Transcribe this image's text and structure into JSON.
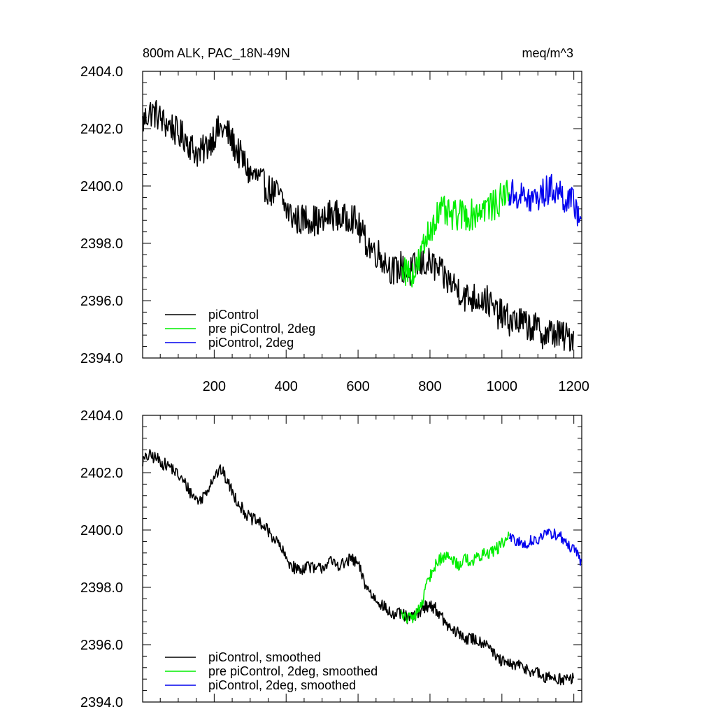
{
  "header": {
    "left_title": "800m ALK, PAC_18N-49N",
    "right_title": "meq/m^3"
  },
  "colors": {
    "piControl": "#000000",
    "pre_piControl_2deg": "#00ee00",
    "piControl_2deg": "#0000ee"
  },
  "chart_data": [
    {
      "type": "line",
      "title": "800m ALK, PAC_18N-49N",
      "units": "meq/m^3",
      "xlabel": "",
      "ylabel": "",
      "xlim": [
        1,
        1222
      ],
      "ylim": [
        2394.0,
        2404.0
      ],
      "xticks": [
        200,
        400,
        600,
        800,
        1000,
        1200
      ],
      "xtick_labels": [
        "200",
        "400",
        "600",
        "800",
        "1000",
        "1200"
      ],
      "yticks": [
        2394.0,
        2396.0,
        2398.0,
        2400.0,
        2402.0,
        2404.0
      ],
      "ytick_labels": [
        "2394.0",
        "2396.0",
        "2398.0",
        "2400.0",
        "2402.0",
        "2404.0"
      ],
      "legend_position": "lower-left",
      "grid": false,
      "noise": 0.55,
      "series": [
        {
          "name": "piControl",
          "color": "#000000",
          "x": [
            1,
            20,
            40,
            60,
            80,
            100,
            120,
            140,
            160,
            180,
            200,
            220,
            240,
            260,
            280,
            300,
            320,
            340,
            360,
            380,
            400,
            420,
            440,
            460,
            480,
            500,
            520,
            540,
            560,
            580,
            600,
            620,
            640,
            660,
            680,
            700,
            720,
            740,
            760,
            780,
            800,
            820,
            840,
            860,
            880,
            900,
            920,
            940,
            960,
            980,
            1000,
            1020,
            1040,
            1060,
            1080,
            1100,
            1120,
            1140,
            1160,
            1180,
            1200
          ],
          "y": [
            2402.2,
            2402.6,
            2402.5,
            2402.2,
            2402.1,
            2401.8,
            2401.7,
            2401.3,
            2401.1,
            2401.4,
            2401.8,
            2402.0,
            2401.8,
            2401.3,
            2400.9,
            2400.4,
            2400.3,
            2400.0,
            2399.8,
            2399.7,
            2399.2,
            2398.9,
            2398.8,
            2398.9,
            2398.8,
            2398.7,
            2399.0,
            2399.0,
            2398.8,
            2399.0,
            2398.6,
            2398.1,
            2397.8,
            2397.6,
            2397.3,
            2397.0,
            2397.2,
            2396.9,
            2397.2,
            2397.3,
            2397.3,
            2397.1,
            2396.8,
            2396.6,
            2396.4,
            2396.1,
            2396.1,
            2396.1,
            2396.0,
            2395.6,
            2395.5,
            2395.3,
            2395.3,
            2395.2,
            2395.1,
            2395.0,
            2394.8,
            2394.9,
            2394.8,
            2394.7,
            2394.8
          ]
        },
        {
          "name": "pre piControl, 2deg",
          "color": "#00ee00",
          "x": [
            720,
            740,
            760,
            780,
            800,
            820,
            840,
            860,
            880,
            900,
            920,
            940,
            960,
            980,
            1000,
            1020
          ],
          "y": [
            2397.2,
            2397.0,
            2397.0,
            2397.8,
            2398.5,
            2399.0,
            2399.1,
            2398.9,
            2399.0,
            2399.0,
            2399.0,
            2399.2,
            2399.3,
            2399.3,
            2399.6,
            2399.9
          ]
        },
        {
          "name": "piControl, 2deg",
          "color": "#0000ee",
          "x": [
            1020,
            1040,
            1060,
            1080,
            1100,
            1120,
            1140,
            1160,
            1180,
            1200,
            1220
          ],
          "y": [
            2399.7,
            2399.7,
            2399.6,
            2399.5,
            2399.6,
            2399.8,
            2399.9,
            2399.8,
            2399.5,
            2399.4,
            2398.9
          ]
        }
      ]
    },
    {
      "type": "line",
      "title": "",
      "units": "",
      "xlabel": "",
      "ylabel": "",
      "xlim": [
        1,
        1222
      ],
      "ylim": [
        2394.0,
        2404.0
      ],
      "xticks": [
        200,
        400,
        600,
        800,
        1000,
        1200
      ],
      "xtick_labels": [],
      "yticks": [
        2394.0,
        2396.0,
        2398.0,
        2400.0,
        2402.0,
        2404.0
      ],
      "ytick_labels": [
        "2394.0",
        "2396.0",
        "2398.0",
        "2400.0",
        "2402.0",
        "2404.0"
      ],
      "legend_position": "lower-left",
      "grid": false,
      "noise": 0.22,
      "series": [
        {
          "name": "piControl, smoothed",
          "color": "#000000",
          "x": [
            1,
            20,
            40,
            60,
            80,
            100,
            120,
            140,
            160,
            180,
            200,
            220,
            240,
            260,
            280,
            300,
            320,
            340,
            360,
            380,
            400,
            420,
            440,
            460,
            480,
            500,
            520,
            540,
            560,
            580,
            600,
            620,
            640,
            660,
            680,
            700,
            720,
            740,
            760,
            780,
            800,
            820,
            840,
            860,
            880,
            900,
            920,
            940,
            960,
            980,
            1000,
            1020,
            1040,
            1060,
            1080,
            1100,
            1120,
            1140,
            1160,
            1180,
            1200
          ],
          "y": [
            2402.4,
            2402.6,
            2402.5,
            2402.3,
            2402.2,
            2401.9,
            2401.6,
            2401.2,
            2401.0,
            2401.4,
            2401.9,
            2402.1,
            2401.6,
            2401.1,
            2400.7,
            2400.4,
            2400.3,
            2400.1,
            2399.8,
            2399.5,
            2399.0,
            2398.7,
            2398.6,
            2398.8,
            2398.6,
            2398.7,
            2398.9,
            2398.8,
            2398.8,
            2399.0,
            2398.8,
            2398.1,
            2397.7,
            2397.5,
            2397.2,
            2397.0,
            2397.1,
            2396.9,
            2397.0,
            2397.3,
            2397.4,
            2397.2,
            2396.8,
            2396.5,
            2396.4,
            2396.2,
            2396.2,
            2396.1,
            2396.1,
            2395.6,
            2395.4,
            2395.3,
            2395.3,
            2395.2,
            2395.1,
            2395.0,
            2394.8,
            2394.9,
            2394.8,
            2394.8,
            2394.8
          ]
        },
        {
          "name": "pre piControl, 2deg, smoothed",
          "color": "#00ee00",
          "x": [
            720,
            740,
            760,
            780,
            800,
            820,
            840,
            860,
            880,
            900,
            920,
            940,
            960,
            980,
            1000,
            1020
          ],
          "y": [
            2397.1,
            2396.9,
            2397.0,
            2397.6,
            2398.4,
            2398.9,
            2399.1,
            2399.0,
            2398.8,
            2399.0,
            2398.9,
            2399.1,
            2399.2,
            2399.3,
            2399.5,
            2399.8
          ]
        },
        {
          "name": "piControl, 2deg, smoothed",
          "color": "#0000ee",
          "x": [
            1020,
            1040,
            1060,
            1080,
            1100,
            1120,
            1140,
            1160,
            1180,
            1200,
            1220
          ],
          "y": [
            2399.7,
            2399.6,
            2399.5,
            2399.6,
            2399.7,
            2399.8,
            2399.9,
            2399.8,
            2399.5,
            2399.3,
            2398.9
          ]
        }
      ]
    }
  ]
}
